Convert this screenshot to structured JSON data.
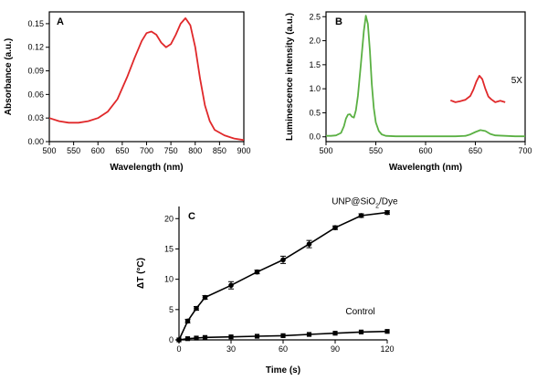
{
  "chart_data": [
    {
      "panel": "A",
      "type": "line",
      "xlabel": "Wavelength (nm)",
      "ylabel": "Absorbance (a.u.)",
      "xlim": [
        500,
        900
      ],
      "ylim": [
        0.0,
        0.165
      ],
      "xticks": [
        500,
        550,
        600,
        650,
        700,
        750,
        800,
        850,
        900
      ],
      "yticks": [
        0.0,
        0.03,
        0.06,
        0.09,
        0.12,
        0.15
      ],
      "ytick_labels": [
        "0.00",
        "0.03",
        "0.06",
        "0.09",
        "0.12",
        "0.15"
      ],
      "color": "#e0282a",
      "series": [
        {
          "x": [
            500,
            520,
            540,
            560,
            580,
            600,
            620,
            640,
            660,
            675,
            690,
            700,
            710,
            720,
            730,
            740,
            750,
            760,
            770,
            780,
            790,
            800,
            810,
            820,
            830,
            840,
            860,
            880,
            900
          ],
          "y": [
            0.03,
            0.026,
            0.024,
            0.024,
            0.026,
            0.03,
            0.038,
            0.054,
            0.082,
            0.106,
            0.128,
            0.138,
            0.14,
            0.136,
            0.126,
            0.12,
            0.124,
            0.136,
            0.15,
            0.157,
            0.148,
            0.12,
            0.08,
            0.046,
            0.026,
            0.015,
            0.008,
            0.004,
            0.002
          ]
        }
      ]
    },
    {
      "panel": "B",
      "type": "line",
      "xlabel": "Wavelength (nm)",
      "ylabel": "Luminescence intensity (a.u.)",
      "xlim": [
        500,
        700
      ],
      "ylim": [
        -0.1,
        2.6
      ],
      "xticks": [
        500,
        550,
        600,
        650,
        700
      ],
      "yticks": [
        0.0,
        0.5,
        1.0,
        1.5,
        2.0,
        2.5
      ],
      "ytick_labels": [
        "0.0",
        "0.5",
        "1.0",
        "1.5",
        "2.0",
        "2.5"
      ],
      "annotation": "5X",
      "series": [
        {
          "color": "#5ab043",
          "x": [
            500,
            505,
            510,
            515,
            518,
            520,
            522,
            524,
            526,
            528,
            530,
            532,
            535,
            538,
            540,
            542,
            544,
            546,
            548,
            550,
            553,
            556,
            560,
            570,
            580,
            590,
            600,
            610,
            620,
            630,
            640,
            645,
            650,
            655,
            660,
            665,
            670,
            680,
            690,
            700
          ],
          "y": [
            0.02,
            0.02,
            0.03,
            0.08,
            0.22,
            0.38,
            0.46,
            0.47,
            0.42,
            0.4,
            0.55,
            0.85,
            1.5,
            2.2,
            2.52,
            2.35,
            1.8,
            1.1,
            0.6,
            0.3,
            0.12,
            0.05,
            0.02,
            0.01,
            0.01,
            0.01,
            0.01,
            0.01,
            0.01,
            0.01,
            0.02,
            0.05,
            0.1,
            0.14,
            0.12,
            0.06,
            0.03,
            0.02,
            0.01,
            0.01
          ]
        },
        {
          "name": "5X",
          "color": "#e0282a",
          "x": [
            625,
            630,
            635,
            640,
            645,
            648,
            651,
            654,
            657,
            660,
            663,
            666,
            670,
            675,
            680
          ],
          "y": [
            0.76,
            0.72,
            0.74,
            0.77,
            0.85,
            0.98,
            1.15,
            1.27,
            1.2,
            1.0,
            0.84,
            0.78,
            0.72,
            0.75,
            0.72
          ]
        }
      ]
    },
    {
      "panel": "C",
      "type": "line",
      "xlabel": "Time (s)",
      "ylabel": "ΔT (°C)",
      "xlim": [
        0,
        120
      ],
      "ylim": [
        0,
        22
      ],
      "xticks": [
        0,
        30,
        60,
        90,
        120
      ],
      "yticks": [
        0,
        5,
        10,
        15,
        20
      ],
      "ytick_labels": [
        "0",
        "5",
        "10",
        "15",
        "20"
      ],
      "series": [
        {
          "name": "UNP@SiO2/Dye",
          "marker": "circle",
          "color": "#000000",
          "x": [
            0,
            5,
            10,
            15,
            30,
            45,
            60,
            75,
            90,
            105,
            120
          ],
          "y": [
            0.0,
            3.1,
            5.2,
            7.0,
            9.0,
            11.2,
            13.2,
            15.8,
            18.5,
            20.5,
            21.0
          ],
          "err": [
            0,
            0.3,
            0.3,
            0.3,
            0.6,
            0.3,
            0.6,
            0.6,
            0.3,
            0.3,
            0.3
          ]
        },
        {
          "name": "Control",
          "marker": "square",
          "color": "#000000",
          "x": [
            0,
            5,
            10,
            15,
            30,
            45,
            60,
            75,
            90,
            105,
            120
          ],
          "y": [
            0.0,
            0.2,
            0.3,
            0.4,
            0.5,
            0.6,
            0.7,
            0.9,
            1.1,
            1.3,
            1.4
          ],
          "err": [
            0,
            0,
            0,
            0,
            0,
            0,
            0,
            0,
            0,
            0,
            0
          ]
        }
      ]
    }
  ]
}
